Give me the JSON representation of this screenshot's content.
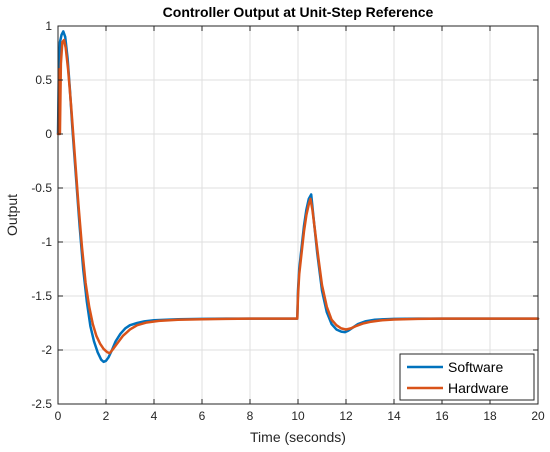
{
  "chart_data": {
    "type": "line",
    "title": "Controller Output at Unit-Step Reference",
    "xlabel": "Time (seconds)",
    "ylabel": "Output",
    "xlim": [
      0,
      20
    ],
    "ylim": [
      -2.5,
      1
    ],
    "xticks": [
      0,
      2,
      4,
      6,
      8,
      10,
      12,
      14,
      16,
      18,
      20
    ],
    "yticks": [
      -2.5,
      -2,
      -1.5,
      -1,
      -0.5,
      0,
      0.5,
      1
    ],
    "grid": true,
    "legend_position": "bottom-right",
    "series": [
      {
        "name": "Software",
        "color": "#0072BD",
        "x": [
          0,
          0.03,
          0.08,
          0.15,
          0.22,
          0.3,
          0.4,
          0.5,
          0.6,
          0.75,
          0.9,
          1.05,
          1.2,
          1.35,
          1.5,
          1.65,
          1.8,
          1.9,
          2.0,
          2.1,
          2.25,
          2.4,
          2.6,
          2.8,
          3.0,
          3.3,
          3.6,
          4.0,
          4.5,
          5.0,
          6.0,
          7.0,
          8.0,
          9.0,
          9.97,
          10.0,
          10.05,
          10.15,
          10.25,
          10.35,
          10.45,
          10.55,
          10.65,
          10.8,
          11.0,
          11.2,
          11.4,
          11.6,
          11.8,
          11.95,
          12.1,
          12.3,
          12.5,
          12.8,
          13.2,
          13.6,
          14.0,
          15.0,
          16.0,
          18.0,
          20.0
        ],
        "y": [
          0.0,
          0.5,
          0.85,
          0.92,
          0.95,
          0.9,
          0.7,
          0.4,
          0.05,
          -0.4,
          -0.85,
          -1.25,
          -1.55,
          -1.78,
          -1.92,
          -2.02,
          -2.09,
          -2.11,
          -2.1,
          -2.07,
          -2.0,
          -1.92,
          -1.85,
          -1.8,
          -1.77,
          -1.75,
          -1.735,
          -1.725,
          -1.72,
          -1.715,
          -1.712,
          -1.71,
          -1.71,
          -1.71,
          -1.71,
          -1.45,
          -1.25,
          -1.05,
          -0.85,
          -0.7,
          -0.6,
          -0.56,
          -0.78,
          -1.1,
          -1.45,
          -1.65,
          -1.76,
          -1.81,
          -1.83,
          -1.835,
          -1.82,
          -1.79,
          -1.76,
          -1.735,
          -1.72,
          -1.715,
          -1.712,
          -1.71,
          -1.71,
          -1.71,
          -1.71
        ]
      },
      {
        "name": "Hardware",
        "color": "#D95319",
        "x": [
          0,
          0.02,
          0.04,
          0.06,
          0.08,
          0.12,
          0.18,
          0.25,
          0.32,
          0.42,
          0.55,
          0.7,
          0.85,
          1.0,
          1.15,
          1.3,
          1.45,
          1.6,
          1.75,
          1.9,
          2.05,
          2.15,
          2.3,
          2.5,
          2.7,
          3.0,
          3.3,
          3.7,
          4.2,
          5.0,
          6.0,
          7.0,
          8.0,
          9.0,
          9.97,
          10.0,
          10.05,
          10.15,
          10.25,
          10.35,
          10.45,
          10.52,
          10.6,
          10.7,
          10.85,
          11.0,
          11.2,
          11.4,
          11.6,
          11.8,
          12.0,
          12.2,
          12.4,
          12.7,
          13.0,
          13.5,
          14.0,
          15.0,
          16.0,
          18.0,
          20.0
        ],
        "y": [
          0.0,
          0.0,
          0.6,
          0.0,
          0.0,
          0.65,
          0.85,
          0.87,
          0.8,
          0.6,
          0.25,
          -0.2,
          -0.65,
          -1.05,
          -1.38,
          -1.6,
          -1.76,
          -1.87,
          -1.94,
          -1.99,
          -2.02,
          -2.03,
          -1.99,
          -1.93,
          -1.87,
          -1.81,
          -1.77,
          -1.745,
          -1.73,
          -1.72,
          -1.715,
          -1.712,
          -1.71,
          -1.71,
          -1.71,
          -1.5,
          -1.3,
          -1.1,
          -0.9,
          -0.75,
          -0.65,
          -0.6,
          -0.7,
          -0.88,
          -1.15,
          -1.4,
          -1.6,
          -1.72,
          -1.77,
          -1.8,
          -1.81,
          -1.8,
          -1.78,
          -1.755,
          -1.74,
          -1.725,
          -1.718,
          -1.712,
          -1.71,
          -1.71,
          -1.71
        ]
      }
    ]
  }
}
